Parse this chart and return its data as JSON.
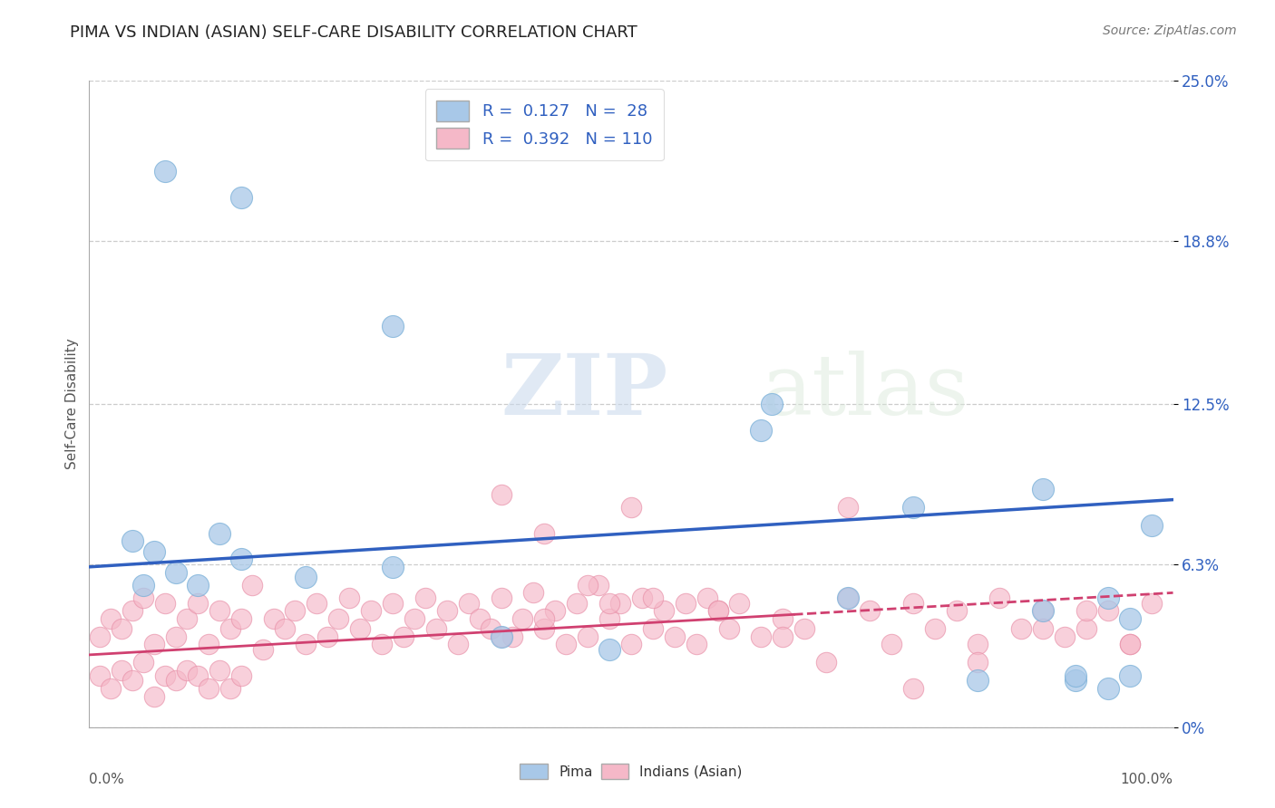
{
  "title": "PIMA VS INDIAN (ASIAN) SELF-CARE DISABILITY CORRELATION CHART",
  "source": "Source: ZipAtlas.com",
  "ylabel": "Self-Care Disability",
  "ytick_values": [
    0.0,
    6.3,
    12.5,
    18.8,
    25.0
  ],
  "ytick_labels": [
    "0%",
    "6.3%",
    "12.5%",
    "18.8%",
    "25.0%"
  ],
  "xlim": [
    0,
    100
  ],
  "ylim": [
    0,
    25.0
  ],
  "pima_color": "#a8c8e8",
  "pima_edge_color": "#7ab0d8",
  "indian_color": "#f5b8c8",
  "indian_edge_color": "#e890a8",
  "pima_line_color": "#3060c0",
  "indian_line_color": "#d04070",
  "background_color": "#ffffff",
  "watermark_zip": "ZIP",
  "watermark_atlas": "atlas",
  "legend_text_color": "#3060c0",
  "title_color": "#222222",
  "source_color": "#777777",
  "ytick_color": "#3060c0",
  "pima_x": [
    7,
    14,
    28,
    63,
    88,
    91,
    94,
    96,
    98,
    4,
    5,
    6,
    8,
    10,
    12,
    14,
    20,
    28,
    38,
    48,
    62,
    70,
    76,
    82,
    88,
    91,
    94,
    96
  ],
  "pima_y": [
    21.5,
    20.5,
    15.5,
    12.5,
    9.2,
    1.8,
    1.5,
    2.0,
    7.8,
    7.2,
    5.5,
    6.8,
    6.0,
    5.5,
    7.5,
    6.5,
    5.8,
    6.2,
    3.5,
    3.0,
    11.5,
    5.0,
    8.5,
    1.8,
    4.5,
    2.0,
    5.0,
    4.2
  ],
  "indian_x": [
    1,
    1,
    2,
    2,
    3,
    3,
    4,
    4,
    5,
    5,
    6,
    6,
    7,
    7,
    8,
    8,
    9,
    9,
    10,
    10,
    11,
    11,
    12,
    12,
    13,
    13,
    14,
    14,
    15,
    16,
    17,
    18,
    19,
    20,
    21,
    22,
    23,
    24,
    25,
    26,
    27,
    28,
    29,
    30,
    31,
    32,
    33,
    34,
    35,
    36,
    37,
    38,
    39,
    40,
    41,
    42,
    43,
    44,
    45,
    46,
    47,
    48,
    49,
    50,
    51,
    52,
    53,
    54,
    55,
    56,
    57,
    58,
    59,
    60,
    62,
    64,
    66,
    68,
    70,
    72,
    74,
    76,
    78,
    80,
    82,
    84,
    86,
    88,
    90,
    92,
    94,
    96,
    98,
    50,
    38,
    42,
    46,
    52,
    58,
    64,
    70,
    76,
    82,
    88,
    92,
    96,
    48,
    38,
    42
  ],
  "indian_y": [
    3.5,
    2.0,
    4.2,
    1.5,
    3.8,
    2.2,
    4.5,
    1.8,
    5.0,
    2.5,
    3.2,
    1.2,
    4.8,
    2.0,
    3.5,
    1.8,
    4.2,
    2.2,
    4.8,
    2.0,
    3.2,
    1.5,
    4.5,
    2.2,
    3.8,
    1.5,
    4.2,
    2.0,
    5.5,
    3.0,
    4.2,
    3.8,
    4.5,
    3.2,
    4.8,
    3.5,
    4.2,
    5.0,
    3.8,
    4.5,
    3.2,
    4.8,
    3.5,
    4.2,
    5.0,
    3.8,
    4.5,
    3.2,
    4.8,
    4.2,
    3.8,
    5.0,
    3.5,
    4.2,
    5.2,
    3.8,
    4.5,
    3.2,
    4.8,
    3.5,
    5.5,
    4.2,
    4.8,
    3.2,
    5.0,
    3.8,
    4.5,
    3.5,
    4.8,
    3.2,
    5.0,
    4.5,
    3.8,
    4.8,
    3.5,
    4.2,
    3.8,
    2.5,
    5.0,
    4.5,
    3.2,
    4.8,
    3.8,
    4.5,
    3.2,
    5.0,
    3.8,
    4.5,
    3.5,
    3.8,
    4.5,
    3.2,
    4.8,
    8.5,
    9.0,
    7.5,
    5.5,
    5.0,
    4.5,
    3.5,
    8.5,
    1.5,
    2.5,
    3.8,
    4.5,
    3.2,
    4.8,
    3.5,
    4.2
  ],
  "pima_trendline_x0": 0,
  "pima_trendline_x1": 100,
  "pima_trendline_y0": 6.2,
  "pima_trendline_y1": 8.8,
  "indian_trendline_x0": 0,
  "indian_trendline_x1": 100,
  "indian_trendline_y0": 2.8,
  "indian_trendline_y1": 5.2
}
